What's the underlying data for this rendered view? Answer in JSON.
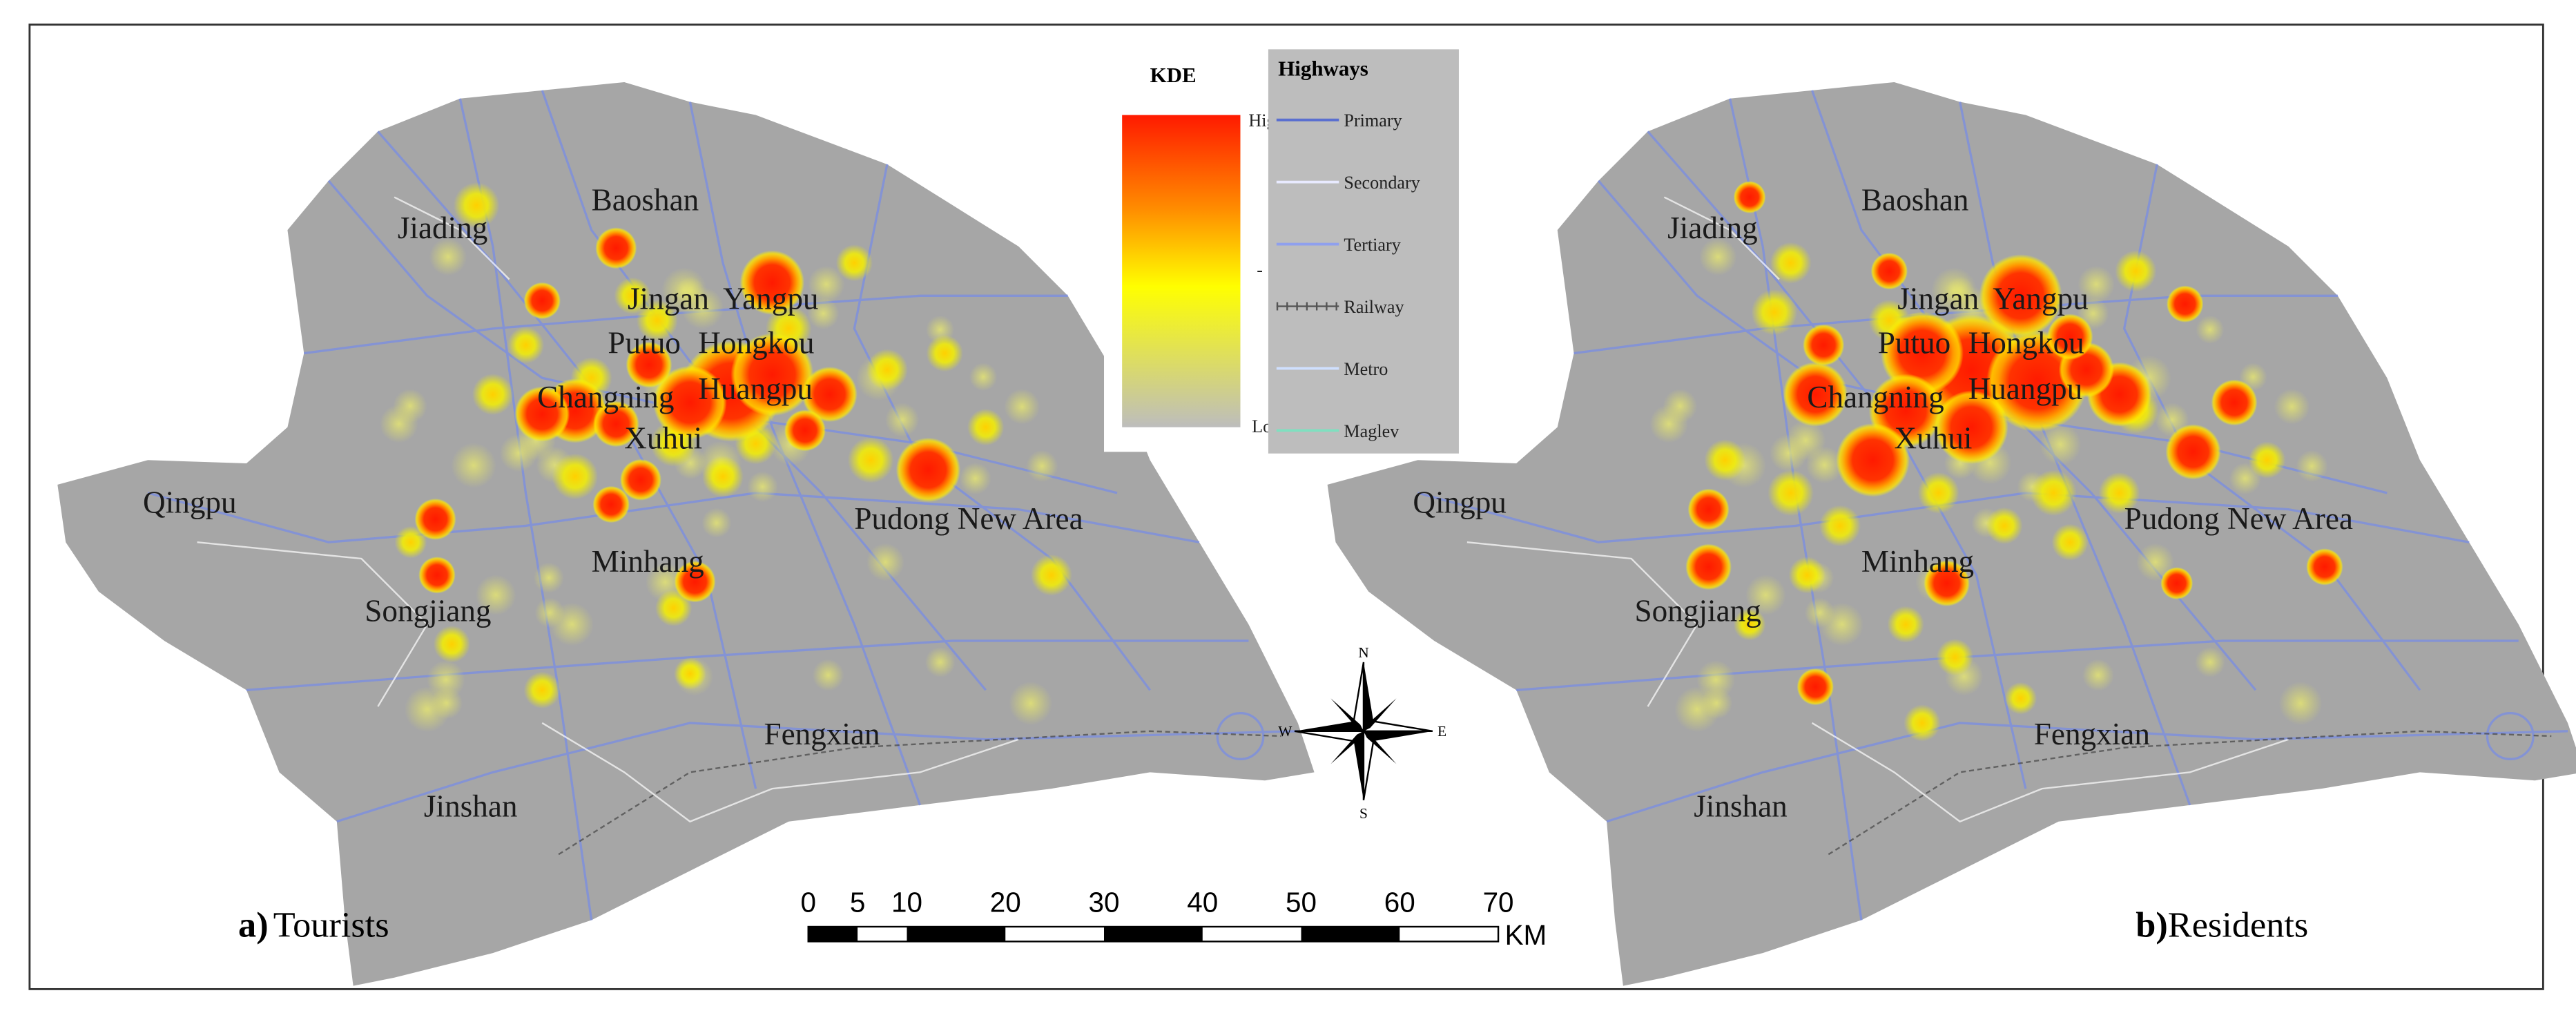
{
  "legend": {
    "kde": {
      "title": "KDE",
      "high": "High",
      "mid": "-",
      "low": "Low"
    },
    "highways": {
      "title": "Highways",
      "items": [
        "Primary",
        "Secondary",
        "Tertiary",
        "Railway",
        "Metro",
        "Maglev"
      ]
    }
  },
  "maps": [
    {
      "letter": "a)",
      "label": "Tourists",
      "districts": [
        "Jiading",
        "Baoshan",
        "Jingan",
        "Yangpu",
        "Putuo",
        "Hongkou",
        "Changning",
        "Huangpu",
        "Xuhui",
        "Qingpu",
        "Minhang",
        "Pudong New Area",
        "Songjiang",
        "Fengxian",
        "Jinshan"
      ]
    },
    {
      "letter": "b)",
      "label": "Residents",
      "districts": [
        "Jiading",
        "Baoshan",
        "Jingan",
        "Yangpu",
        "Putuo",
        "Hongkou",
        "Changning",
        "Huangpu",
        "Xuhui",
        "Qingpu",
        "Minhang",
        "Pudong New Area",
        "Songjiang",
        "Fengxian",
        "Jinshan"
      ]
    }
  ],
  "compass": {
    "n": "N",
    "s": "S",
    "e": "E",
    "w": "W"
  },
  "scale_bar": {
    "ticks": [
      0,
      5,
      10,
      20,
      30,
      40,
      50,
      60,
      70
    ],
    "unit": "KM"
  }
}
